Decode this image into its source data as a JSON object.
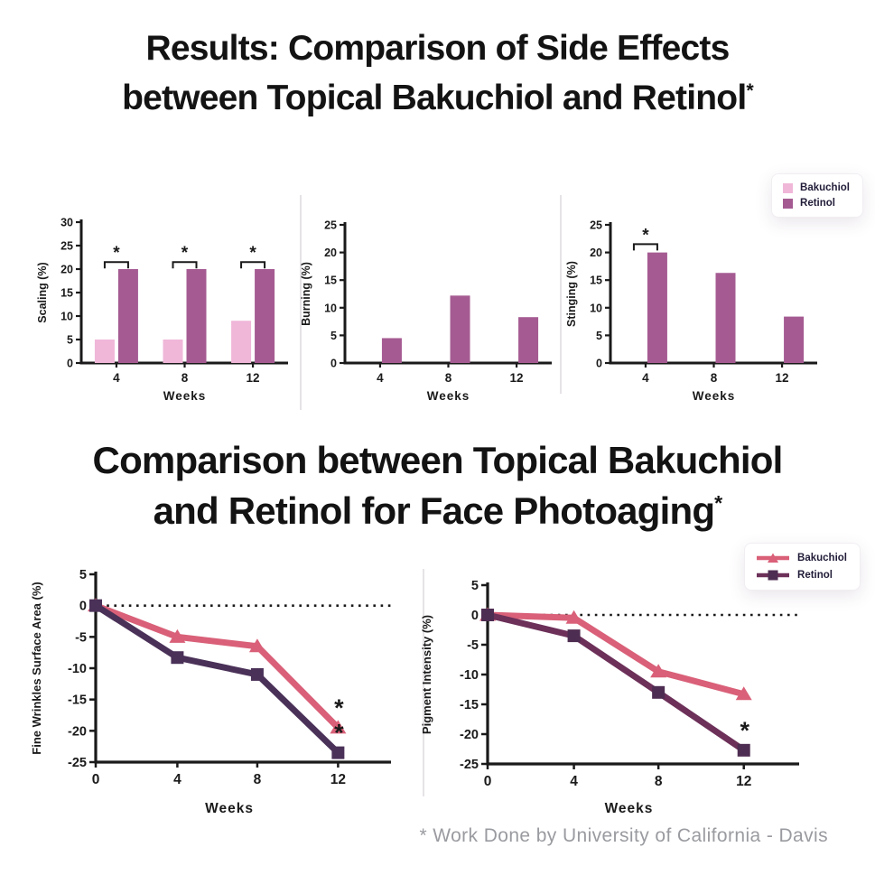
{
  "page": {
    "background": "#ffffff",
    "results_title": {
      "line1": "Results: Comparison of Side Effects",
      "line2": "between Topical Bakuchiol and Retinol",
      "superscript": "*"
    },
    "photoaging_title": {
      "line1": "Comparison between Topical Bakuchiol",
      "line2": "and Retinol for Face Photoaging",
      "superscript": "*"
    },
    "footnote": "* Work Done by University of California - Davis"
  },
  "colors": {
    "bakuchiol_pink": "#f0b7d9",
    "retinol_mauve": "#a55b92",
    "bakuchiol_rose_line": "#d96078",
    "retinol_purple_line": "#4a3158",
    "retinol_plum_line": "#6c3059",
    "axis_black": "#1a1a1a",
    "divider_gray": "#e6e3e6",
    "legend_text": "#221c38",
    "footnote_gray": "#9a9ba0"
  },
  "bar_legend": {
    "items": [
      {
        "label": "Bakuchiol",
        "color": "#f0b7d9"
      },
      {
        "label": "Retinol",
        "color": "#a55b92"
      }
    ]
  },
  "line_legend": {
    "items": [
      {
        "label": "Bakuchiol",
        "marker": "triangle",
        "color": "#d96078",
        "marker_color": "#d96078"
      },
      {
        "label": "Retinol",
        "marker": "square",
        "color": "#6c3059",
        "marker_color": "#4e2d52"
      }
    ]
  },
  "chart_data": [
    {
      "id": "scaling",
      "type": "bar",
      "title": "",
      "ylabel": "Scaling (%)",
      "xlabel": "Weeks",
      "categories": [
        "4",
        "8",
        "12"
      ],
      "ylim": [
        0,
        30
      ],
      "ytick_step": 5,
      "series": [
        {
          "name": "Bakuchiol",
          "color": "#f0b7d9",
          "values": [
            5,
            5,
            9
          ]
        },
        {
          "name": "Retinol",
          "color": "#a55b92",
          "values": [
            20,
            20,
            20
          ]
        }
      ],
      "sig_brackets": [
        {
          "category": 0,
          "y": 21.5,
          "label": "*"
        },
        {
          "category": 1,
          "y": 21.5,
          "label": "*"
        },
        {
          "category": 2,
          "y": 21.5,
          "label": "*"
        }
      ]
    },
    {
      "id": "burning",
      "type": "bar",
      "title": "",
      "ylabel": "Burning (%)",
      "xlabel": "Weeks",
      "categories": [
        "4",
        "8",
        "12"
      ],
      "ylim": [
        0,
        25
      ],
      "ytick_step": 5,
      "series": [
        {
          "name": "Bakuchiol",
          "color": "#f0b7d9",
          "values": [
            0,
            0,
            0
          ]
        },
        {
          "name": "Retinol",
          "color": "#a55b92",
          "values": [
            4.5,
            12.2,
            8.3
          ]
        }
      ],
      "sig_brackets": []
    },
    {
      "id": "stinging",
      "type": "bar",
      "title": "",
      "ylabel": "Stinging (%)",
      "xlabel": "Weeks",
      "categories": [
        "4",
        "8",
        "12"
      ],
      "ylim": [
        0,
        25
      ],
      "ytick_step": 5,
      "series": [
        {
          "name": "Bakuchiol",
          "color": "#f0b7d9",
          "values": [
            0,
            0,
            0
          ]
        },
        {
          "name": "Retinol",
          "color": "#a55b92",
          "values": [
            20,
            16.3,
            8.4
          ]
        }
      ],
      "sig_brackets": [
        {
          "category": 0,
          "y": 21.5,
          "label": "*"
        }
      ]
    },
    {
      "id": "fine_wrinkles",
      "type": "line",
      "title": "",
      "ylabel": "Fine Wrinkles Surface Area (%)",
      "xlabel": "Weeks",
      "x": [
        0,
        4,
        8,
        12
      ],
      "ylim": [
        -25,
        5
      ],
      "ytick_step": 5,
      "zero_line": true,
      "series": [
        {
          "name": "Bakuchiol",
          "marker": "triangle",
          "color": "#d96078",
          "marker_color": "#d96078",
          "values": [
            0,
            -5,
            -6.5,
            -19.5
          ],
          "stars_at_x": [
            12
          ]
        },
        {
          "name": "Retinol",
          "marker": "square",
          "color": "#4a3158",
          "marker_color": "#4a3158",
          "values": [
            0,
            -8.3,
            -11,
            -23.5
          ],
          "stars_at_x": [
            12
          ]
        }
      ]
    },
    {
      "id": "pigment",
      "type": "line",
      "title": "",
      "ylabel": "Pigment Intensity (%)",
      "xlabel": "Weeks",
      "x": [
        0,
        4,
        8,
        12
      ],
      "ylim": [
        -25,
        5
      ],
      "ytick_step": 5,
      "zero_line": true,
      "series": [
        {
          "name": "Bakuchiol",
          "marker": "triangle",
          "color": "#d96078",
          "marker_color": "#d96078",
          "values": [
            0,
            -0.5,
            -9.5,
            -13.3
          ],
          "stars_at_x": []
        },
        {
          "name": "Retinol",
          "marker": "square",
          "color": "#6c3059",
          "marker_color": "#4e2d52",
          "values": [
            0,
            -3.5,
            -13,
            -22.7
          ],
          "stars_at_x": [
            12
          ]
        }
      ]
    }
  ]
}
